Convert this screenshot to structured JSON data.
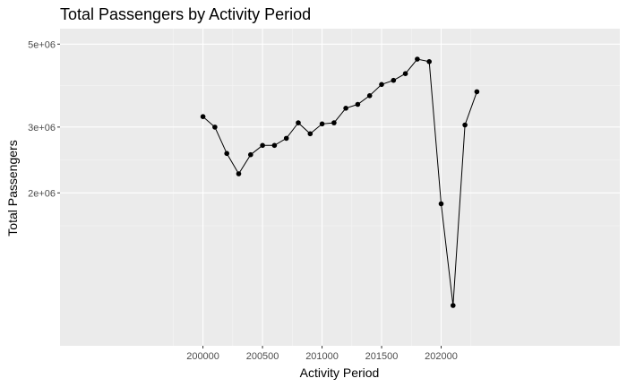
{
  "chart_data": {
    "type": "line",
    "title": "Total Passengers by Activity Period",
    "xlabel": "Activity Period",
    "ylabel": "Total Passengers",
    "x_ticks": [
      200000,
      200500,
      201000,
      201500,
      202000
    ],
    "x_tick_labels": [
      "200000",
      "200500",
      "201000",
      "201500",
      "202000"
    ],
    "y_ticks": [
      2000000,
      3000000,
      5000000
    ],
    "y_tick_labels": [
      "2e+06",
      "3e+06",
      "5e+06"
    ],
    "y_scale": "log",
    "grid": true,
    "series": [
      {
        "x": [
          200000,
          200100,
          200200,
          200300,
          200400,
          200500,
          200600,
          200700,
          200800,
          200900,
          201000,
          201100,
          201200,
          201300,
          201400,
          201500,
          201600,
          201700,
          201800,
          201900,
          202000,
          202100,
          202200,
          202300
        ],
        "values": [
          3200000,
          3000000,
          2550000,
          2250000,
          2530000,
          2680000,
          2680000,
          2800000,
          3080000,
          2880000,
          3060000,
          3080000,
          3370000,
          3450000,
          3640000,
          3900000,
          4000000,
          4170000,
          4560000,
          4490000,
          1870000,
          1000000,
          3040000,
          3730000
        ]
      }
    ]
  }
}
